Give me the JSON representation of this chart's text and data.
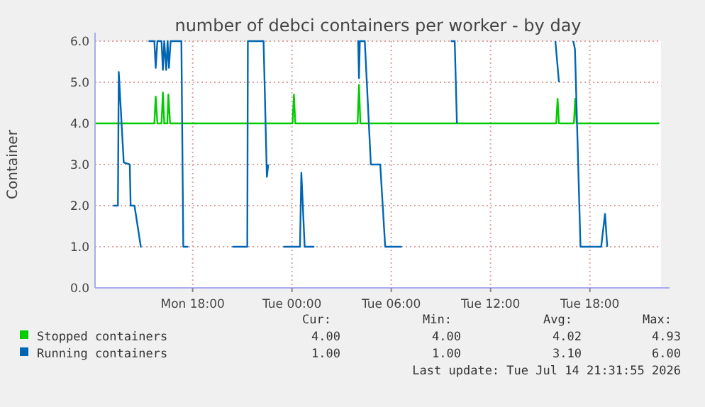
{
  "chart_data": {
    "type": "line",
    "title": "number of debci containers per worker - by day",
    "ylabel": "Container",
    "xlim": [
      "2026-07-13T12:06",
      "2026-07-14T22:18"
    ],
    "ylim": [
      0,
      6
    ],
    "xticks": [
      {
        "value": "2026-07-13T18:00",
        "label": "Mon 18:00"
      },
      {
        "value": "2026-07-14T00:00",
        "label": "Tue 00:00"
      },
      {
        "value": "2026-07-14T06:00",
        "label": "Tue 06:00"
      },
      {
        "value": "2026-07-14T12:00",
        "label": "Tue 12:00"
      },
      {
        "value": "2026-07-14T18:00",
        "label": "Tue 18:00"
      }
    ],
    "yticks": [
      {
        "value": 0,
        "label": "0.0"
      },
      {
        "value": 1,
        "label": "1.0"
      },
      {
        "value": 2,
        "label": "2.0"
      },
      {
        "value": 3,
        "label": "3.0"
      },
      {
        "value": 4,
        "label": "4.0"
      },
      {
        "value": 5,
        "label": "5.0"
      },
      {
        "value": 6,
        "label": "6.0"
      }
    ],
    "grid": true,
    "legend": "bottom",
    "series": [
      {
        "name": "Stopped containers",
        "color": "#00cc00",
        "x": [
          "2026-07-13T12:06",
          "2026-07-13T15:41",
          "2026-07-13T15:46",
          "2026-07-13T15:52",
          "2026-07-13T16:07",
          "2026-07-13T16:12",
          "2026-07-13T16:17",
          "2026-07-13T16:28",
          "2026-07-13T16:32",
          "2026-07-13T16:38",
          "2026-07-14T00:02",
          "2026-07-14T00:07",
          "2026-07-14T00:12",
          "2026-07-14T03:58",
          "2026-07-14T04:03",
          "2026-07-14T04:08",
          "2026-07-14T15:58",
          "2026-07-14T16:03",
          "2026-07-14T16:08",
          "2026-07-14T17:02",
          "2026-07-14T17:07",
          "2026-07-14T17:12",
          "2026-07-14T22:12"
        ],
        "values": [
          4,
          4,
          4.65,
          4,
          4,
          4.75,
          4,
          4,
          4.7,
          4,
          4,
          4.7,
          4,
          4,
          4.93,
          4,
          4,
          4.6,
          4,
          4,
          4.6,
          4,
          4
        ]
      },
      {
        "name": "Running containers",
        "color": "#0066b3",
        "x": [
          "2026-07-13T13:12",
          "2026-07-13T13:29",
          "2026-07-13T13:32",
          "2026-07-13T13:50",
          "2026-07-13T14:12",
          "2026-07-13T14:15",
          "2026-07-13T14:29",
          "2026-07-13T14:52",
          "2026-07-13T14:55",
          "2026-07-13T15:06",
          "2026-07-13T15:20",
          "2026-07-13T15:41",
          "2026-07-13T15:46",
          "2026-07-13T15:52",
          "2026-07-13T16:07",
          "2026-07-13T16:12",
          "2026-07-13T16:17",
          "2026-07-13T16:24",
          "2026-07-13T16:29",
          "2026-07-13T16:34",
          "2026-07-13T16:40",
          "2026-07-13T17:19",
          "2026-07-13T17:26",
          "2026-07-13T17:44",
          "2026-07-13T18:00",
          "2026-07-13T20:24",
          "2026-07-13T21:18",
          "2026-07-13T21:20",
          "2026-07-13T22:17",
          "2026-07-13T22:29",
          "2026-07-13T22:34",
          "2026-07-13T22:48",
          "2026-07-13T23:29",
          "2026-07-14T00:29",
          "2026-07-14T00:34",
          "2026-07-14T00:46",
          "2026-07-14T01:21",
          "2026-07-14T02:00",
          "2026-07-14T03:57",
          "2026-07-14T04:00",
          "2026-07-14T04:03",
          "2026-07-14T04:06",
          "2026-07-14T04:24",
          "2026-07-14T04:46",
          "2026-07-14T05:20",
          "2026-07-14T05:29",
          "2026-07-14T05:38",
          "2026-07-14T06:38",
          "2026-07-14T07:00",
          "2026-07-14T09:36",
          "2026-07-14T09:50",
          "2026-07-14T09:58",
          "2026-07-14T10:18",
          "2026-07-14T15:55",
          "2026-07-14T16:08",
          "2026-07-14T16:12",
          "2026-07-14T17:00",
          "2026-07-14T17:06",
          "2026-07-14T17:26",
          "2026-07-14T18:41",
          "2026-07-14T18:55",
          "2026-07-14T19:03"
        ],
        "values": [
          2,
          2,
          5.25,
          3.05,
          3,
          2,
          2,
          1,
          1,
          null,
          6,
          6,
          5.35,
          6,
          6,
          5.3,
          6,
          5.3,
          6,
          5.35,
          6,
          6,
          1,
          1,
          null,
          1,
          1,
          6,
          6,
          2.7,
          3,
          null,
          1,
          1,
          2.8,
          1,
          1,
          null,
          6,
          6,
          5.1,
          6,
          6,
          3,
          3,
          2,
          1,
          1,
          null,
          6,
          6,
          4,
          null,
          6,
          5,
          null,
          6,
          5.8,
          1,
          1,
          1.8,
          1
        ]
      }
    ],
    "annotations": [
      "Cur:",
      "Min:",
      "Avg:",
      "Max:",
      "4.00",
      "4.00",
      "4.02",
      "4.93",
      "1.00",
      "1.00",
      "3.10",
      "6.00",
      "Last update: Tue Jul 14 21:31:55 2026"
    ]
  }
}
